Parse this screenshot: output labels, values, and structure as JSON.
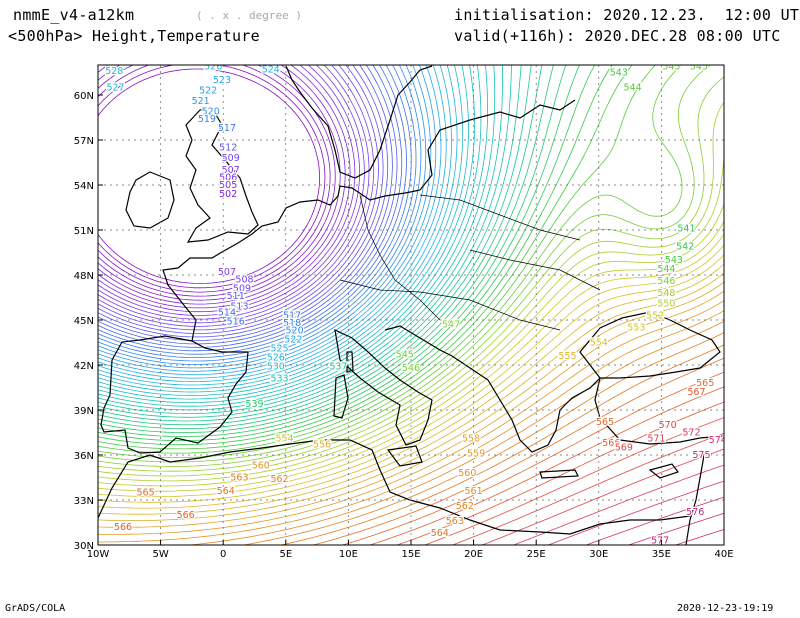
{
  "header": {
    "model": "nmmE_v4-a12km",
    "units": "( . x . degree )",
    "field": "<500hPa> Height,Temperature",
    "init": "initialisation: 2020.12.23.  12:00 UTC",
    "valid": "valid(+116h): 2020.DEC.28 08:00 UTC"
  },
  "footer": {
    "left": "GrADS/COLA",
    "right": "2020-12-23-19:19"
  },
  "map": {
    "lon_ticks": [
      "10W",
      "5W",
      "0",
      "5E",
      "10E",
      "15E",
      "20E",
      "25E",
      "30E",
      "35E",
      "40E"
    ],
    "lat_ticks": [
      "60N",
      "57N",
      "54N",
      "51N",
      "48N",
      "45N",
      "42N",
      "39N",
      "36N",
      "33N",
      "30N"
    ],
    "lon_range": [
      -10,
      40
    ],
    "lat_range": [
      30,
      62
    ],
    "contour_labels": [
      {
        "text": "528",
        "lon": -8.7,
        "lat": 61.4
      },
      {
        "text": "527",
        "lon": -8.6,
        "lat": 60.3
      },
      {
        "text": "526",
        "lon": -0.8,
        "lat": 61.7
      },
      {
        "text": "524",
        "lon": 3.8,
        "lat": 61.5
      },
      {
        "text": "523",
        "lon": -0.1,
        "lat": 60.8
      },
      {
        "text": "522",
        "lon": -1.2,
        "lat": 60.1
      },
      {
        "text": "521",
        "lon": -1.8,
        "lat": 59.4
      },
      {
        "text": "520",
        "lon": -1.0,
        "lat": 58.7
      },
      {
        "text": "519",
        "lon": -1.3,
        "lat": 58.2
      },
      {
        "text": "517",
        "lon": 0.3,
        "lat": 57.6
      },
      {
        "text": "512",
        "lon": 0.4,
        "lat": 56.3
      },
      {
        "text": "509",
        "lon": 0.6,
        "lat": 55.6
      },
      {
        "text": "507",
        "lon": 0.6,
        "lat": 54.8
      },
      {
        "text": "506",
        "lon": 0.4,
        "lat": 54.3
      },
      {
        "text": "505",
        "lon": 0.4,
        "lat": 53.8
      },
      {
        "text": "502",
        "lon": 0.4,
        "lat": 53.2
      },
      {
        "text": "507",
        "lon": 0.3,
        "lat": 48.0
      },
      {
        "text": "508",
        "lon": 1.7,
        "lat": 47.5
      },
      {
        "text": "509",
        "lon": 1.5,
        "lat": 46.9
      },
      {
        "text": "511",
        "lon": 1.0,
        "lat": 46.4
      },
      {
        "text": "513",
        "lon": 1.3,
        "lat": 45.7
      },
      {
        "text": "514",
        "lon": 0.3,
        "lat": 45.3
      },
      {
        "text": "516",
        "lon": 1.0,
        "lat": 44.7
      },
      {
        "text": "517",
        "lon": 5.5,
        "lat": 45.1
      },
      {
        "text": "518",
        "lon": 5.5,
        "lat": 44.6
      },
      {
        "text": "520",
        "lon": 5.7,
        "lat": 44.1
      },
      {
        "text": "522",
        "lon": 5.6,
        "lat": 43.5
      },
      {
        "text": "525",
        "lon": 4.5,
        "lat": 42.9
      },
      {
        "text": "526",
        "lon": 4.2,
        "lat": 42.3
      },
      {
        "text": "530",
        "lon": 4.2,
        "lat": 41.7
      },
      {
        "text": "533",
        "lon": 4.5,
        "lat": 40.9
      },
      {
        "text": "537",
        "lon": 9.2,
        "lat": 41.7
      },
      {
        "text": "539",
        "lon": 2.5,
        "lat": 39.2
      },
      {
        "text": "545",
        "lon": 14.5,
        "lat": 42.5
      },
      {
        "text": "546",
        "lon": 15.0,
        "lat": 41.6
      },
      {
        "text": "547",
        "lon": 18.2,
        "lat": 44.5
      },
      {
        "text": "554",
        "lon": 4.9,
        "lat": 36.9
      },
      {
        "text": "556",
        "lon": 7.9,
        "lat": 36.5
      },
      {
        "text": "558",
        "lon": 19.8,
        "lat": 36.9
      },
      {
        "text": "555",
        "lon": 27.5,
        "lat": 42.4
      },
      {
        "text": "554",
        "lon": 30.0,
        "lat": 43.3
      },
      {
        "text": "559",
        "lon": 20.2,
        "lat": 35.9
      },
      {
        "text": "560",
        "lon": 3.0,
        "lat": 35.1
      },
      {
        "text": "562",
        "lon": 4.5,
        "lat": 34.2
      },
      {
        "text": "563",
        "lon": 1.3,
        "lat": 34.3
      },
      {
        "text": "564",
        "lon": 0.2,
        "lat": 33.4
      },
      {
        "text": "565",
        "lon": -6.2,
        "lat": 33.3
      },
      {
        "text": "566",
        "lon": -8.0,
        "lat": 31.0
      },
      {
        "text": "566",
        "lon": -3.0,
        "lat": 31.8
      },
      {
        "text": "560",
        "lon": 19.5,
        "lat": 34.6
      },
      {
        "text": "561",
        "lon": 20.0,
        "lat": 33.4
      },
      {
        "text": "562",
        "lon": 19.3,
        "lat": 32.4
      },
      {
        "text": "563",
        "lon": 18.5,
        "lat": 31.4
      },
      {
        "text": "564",
        "lon": 17.3,
        "lat": 30.6
      },
      {
        "text": "565",
        "lon": 30.5,
        "lat": 38.0
      },
      {
        "text": "566",
        "lon": 31.0,
        "lat": 36.6
      },
      {
        "text": "569",
        "lon": 32.0,
        "lat": 36.3
      },
      {
        "text": "570",
        "lon": 35.5,
        "lat": 37.8
      },
      {
        "text": "571",
        "lon": 34.6,
        "lat": 36.9
      },
      {
        "text": "572",
        "lon": 37.4,
        "lat": 37.3
      },
      {
        "text": "574",
        "lon": 39.5,
        "lat": 36.8
      },
      {
        "text": "575",
        "lon": 38.2,
        "lat": 35.8
      },
      {
        "text": "576",
        "lon": 37.7,
        "lat": 32.0
      },
      {
        "text": "577",
        "lon": 34.9,
        "lat": 30.1
      },
      {
        "text": "567",
        "lon": 37.8,
        "lat": 40.0
      },
      {
        "text": "565",
        "lon": 38.5,
        "lat": 40.6
      },
      {
        "text": "543",
        "lon": 31.6,
        "lat": 61.3
      },
      {
        "text": "544",
        "lon": 32.7,
        "lat": 60.3
      },
      {
        "text": "545",
        "lon": 38.0,
        "lat": 61.7
      },
      {
        "text": "545",
        "lon": 35.8,
        "lat": 61.7
      },
      {
        "text": "541",
        "lon": 37.0,
        "lat": 50.9
      },
      {
        "text": "542",
        "lon": 36.9,
        "lat": 49.7
      },
      {
        "text": "543",
        "lon": 36.0,
        "lat": 48.8
      },
      {
        "text": "544",
        "lon": 35.4,
        "lat": 48.2
      },
      {
        "text": "546",
        "lon": 35.4,
        "lat": 47.4
      },
      {
        "text": "548",
        "lon": 35.4,
        "lat": 46.6
      },
      {
        "text": "550",
        "lon": 35.4,
        "lat": 45.9
      },
      {
        "text": "552",
        "lon": 34.5,
        "lat": 45.1
      },
      {
        "text": "553",
        "lon": 33.0,
        "lat": 44.3
      }
    ]
  }
}
